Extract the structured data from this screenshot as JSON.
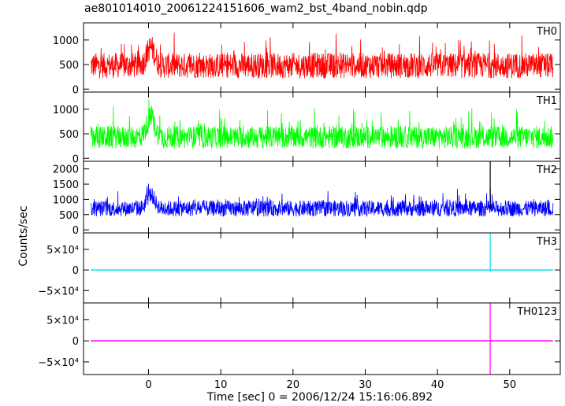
{
  "title": "ae801014010_20061224151606_wam2_bst_4band_nobin.qdp",
  "xlabel": "Time [sec] 0 = 2006/12/24 15:16:06.892",
  "ylabel": "Counts/sec",
  "chart_data": {
    "type": "line",
    "title": "ae801014010_20061224151606_wam2_bst_4band_nobin.qdp",
    "xlabel": "Time [sec] 0 = 2006/12/24 15:16:06.892",
    "ylabel": "Counts/sec",
    "xlim": [
      -9,
      57
    ],
    "x_ticks": [
      0,
      10,
      20,
      30,
      40,
      50
    ],
    "x_range_data": [
      -8,
      56
    ],
    "panels": [
      {
        "name": "TH0",
        "color": "#ff0000",
        "ylim": [
          -60,
          1350
        ],
        "y_ticks": [
          {
            "v": 0,
            "label": "0"
          },
          {
            "v": 500,
            "label": "500"
          },
          {
            "v": 1000,
            "label": "1000"
          }
        ],
        "base_level": 480,
        "noise": 260,
        "burst_at": 0.3,
        "burst_height": 1300
      },
      {
        "name": "TH1",
        "color": "#00ff00",
        "ylim": [
          -60,
          1350
        ],
        "y_ticks": [
          {
            "v": 0,
            "label": "0"
          },
          {
            "v": 500,
            "label": "500"
          },
          {
            "v": 1000,
            "label": "1000"
          }
        ],
        "base_level": 430,
        "noise": 230,
        "burst_at": 0.3,
        "burst_height": 1300
      },
      {
        "name": "TH2",
        "color": "#0000ff",
        "ylim": [
          -100,
          2250
        ],
        "y_ticks": [
          {
            "v": 0,
            "label": "0"
          },
          {
            "v": 500,
            "label": "500"
          },
          {
            "v": 1000,
            "label": "1000"
          },
          {
            "v": 1500,
            "label": "1500"
          },
          {
            "v": 2000,
            "label": "2000"
          }
        ],
        "base_level": 700,
        "noise": 260,
        "burst_at": 0.3,
        "burst_height": 1700,
        "spike_at": 47.3,
        "spike_value": 2250
      },
      {
        "name": "TH3",
        "color": "#00e5e5",
        "ylim": [
          -80000,
          90000
        ],
        "y_ticks": [
          {
            "v": -50000,
            "label": "−5×10⁴"
          },
          {
            "v": 0,
            "label": "0"
          },
          {
            "v": 50000,
            "label": "5×10⁴"
          }
        ],
        "base_level": 0,
        "noise": 0,
        "spike_at": 47.3,
        "spike_value": 90000,
        "spike_low": -5000
      },
      {
        "name": "TH0123",
        "color": "#ff00ff",
        "ylim": [
          -80000,
          90000
        ],
        "y_ticks": [
          {
            "v": -50000,
            "label": "−5×10⁴"
          },
          {
            "v": 0,
            "label": "0"
          },
          {
            "v": 50000,
            "label": "5×10⁴"
          }
        ],
        "base_level": 0,
        "noise": 0,
        "spike_at": 47.3,
        "spike_value": 90000,
        "spike_low": -80000
      }
    ]
  }
}
